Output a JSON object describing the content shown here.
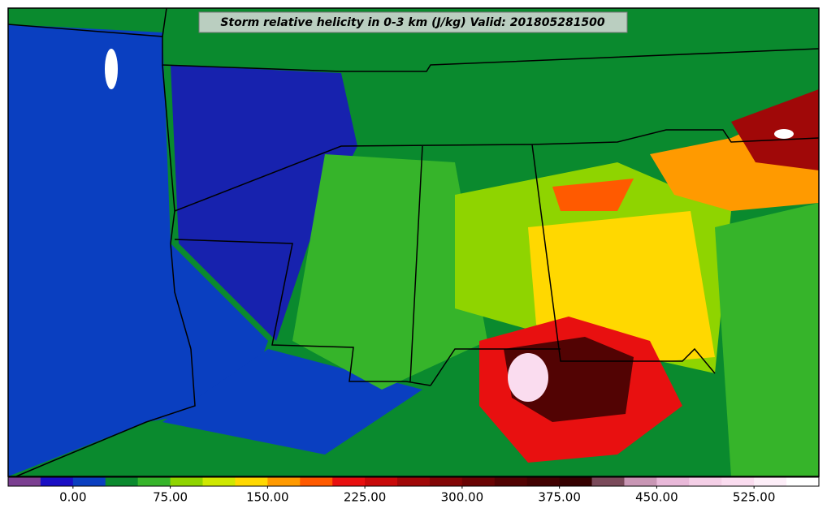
{
  "title": "Storm relative helicity in 0-3 km (J/kg) Valid: 201805281500",
  "colorbar": {
    "lim": [
      -50,
      575
    ],
    "ticks": [
      {
        "value": 0,
        "label": "0.00"
      },
      {
        "value": 75,
        "label": "75.00"
      },
      {
        "value": 150,
        "label": "150.00"
      },
      {
        "value": 225,
        "label": "225.00"
      },
      {
        "value": 300,
        "label": "300.00"
      },
      {
        "value": 375,
        "label": "375.00"
      },
      {
        "value": 450,
        "label": "450.00"
      },
      {
        "value": 525,
        "label": "525.00"
      }
    ],
    "colors": [
      "#7b3f91",
      "#1a0fc4",
      "#0a3fc0",
      "#0a8a2e",
      "#36b42a",
      "#8fd400",
      "#cfe800",
      "#ffd800",
      "#ff9a00",
      "#ff5a00",
      "#e81010",
      "#c80a0a",
      "#a00808",
      "#820606",
      "#6a0404",
      "#520303",
      "#420202",
      "#360101",
      "#7a4a5a",
      "#c896b4",
      "#e8b8d8",
      "#f4cfe6",
      "#fadcef",
      "#fdeef8",
      "#ffffff"
    ]
  }
}
